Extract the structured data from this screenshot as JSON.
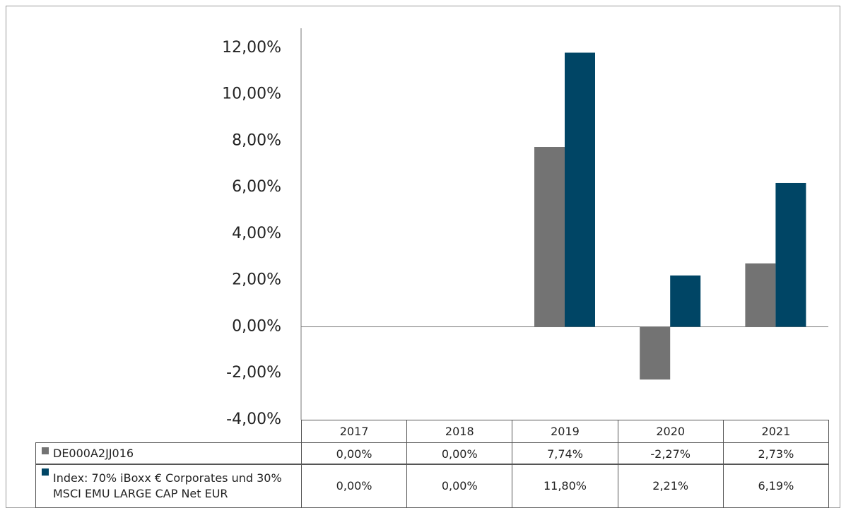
{
  "chart_data": {
    "type": "bar",
    "categories": [
      "2017",
      "2018",
      "2019",
      "2020",
      "2021"
    ],
    "series": [
      {
        "name": "DE000A2JJ016",
        "color": "#737373",
        "values": [
          0,
          0,
          7.74,
          -2.27,
          2.73
        ],
        "value_labels": [
          "0,00%",
          "0,00%",
          "7,74%",
          "-2,27%",
          "2,73%"
        ]
      },
      {
        "name": "Index: 70% iBoxx € Corporates und 30% MSCI EMU LARGE CAP Net EUR",
        "color": "#004565",
        "values": [
          0,
          0,
          11.8,
          2.21,
          6.19
        ],
        "value_labels": [
          "0,00%",
          "0,00%",
          "11,80%",
          "2,21%",
          "6,19%"
        ]
      }
    ],
    "ylim": [
      -4,
      12.85
    ],
    "yticks": [
      {
        "value": -4,
        "label": "-4,00%"
      },
      {
        "value": -2,
        "label": "-2,00%"
      },
      {
        "value": 0,
        "label": "0,00%"
      },
      {
        "value": 2,
        "label": "2,00%"
      },
      {
        "value": 4,
        "label": "4,00%"
      },
      {
        "value": 6,
        "label": "6,00%"
      },
      {
        "value": 8,
        "label": "8,00%"
      },
      {
        "value": 10,
        "label": "10,00%"
      },
      {
        "value": 12,
        "label": "12,00%"
      }
    ],
    "grid": false
  }
}
